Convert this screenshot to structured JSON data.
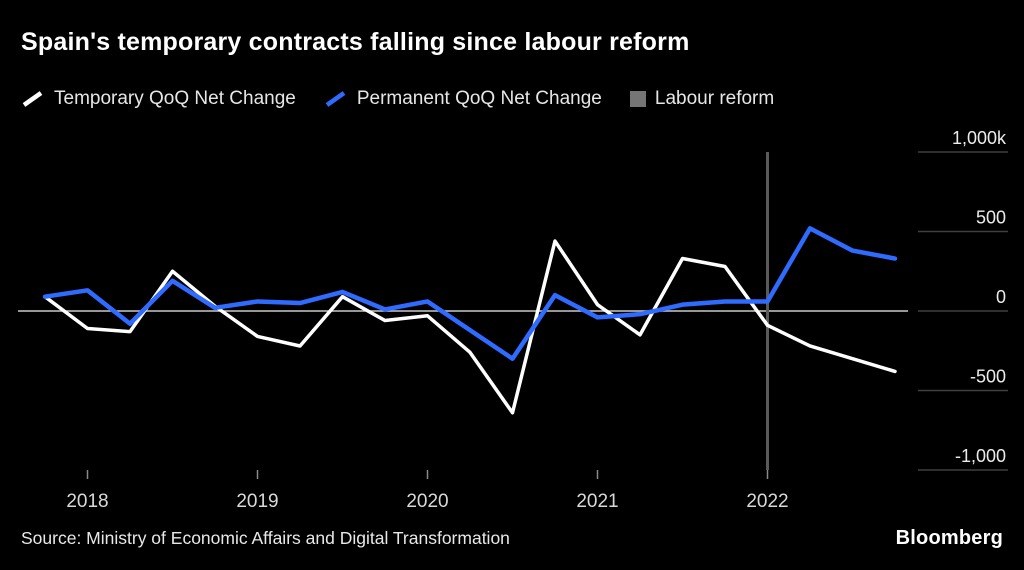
{
  "title": "Spain's temporary contracts falling since labour reform",
  "legend": [
    {
      "label": "Temporary QoQ Net Change",
      "color": "#ffffff",
      "type": "line",
      "icon": "temporary-line-icon"
    },
    {
      "label": "Permanent QoQ Net Change",
      "color": "#2f6bff",
      "type": "line",
      "icon": "permanent-line-icon"
    },
    {
      "label": "Labour reform",
      "color": "#757575",
      "type": "square",
      "icon": "labour-reform-swatch-icon"
    }
  ],
  "source": "Source: Ministry of Economic Affairs and Digital Transformation",
  "logo": "Bloomberg",
  "chart_data": {
    "type": "line",
    "x": [
      "2017 Q4",
      "2018 Q1",
      "2018 Q2",
      "2018 Q3",
      "2018 Q4",
      "2019 Q1",
      "2019 Q2",
      "2019 Q3",
      "2019 Q4",
      "2020 Q1",
      "2020 Q2",
      "2020 Q3",
      "2020 Q4",
      "2021 Q1",
      "2021 Q2",
      "2021 Q3",
      "2021 Q4",
      "2022 Q1",
      "2022 Q2",
      "2022 Q3",
      "2022 Q4"
    ],
    "series": [
      {
        "name": "Temporary QoQ Net Change",
        "color": "#ffffff",
        "values": [
          90,
          -110,
          -130,
          250,
          30,
          -160,
          -220,
          90,
          -60,
          -30,
          -260,
          -640,
          440,
          40,
          -150,
          330,
          280,
          -90,
          -220,
          -300,
          -380
        ]
      },
      {
        "name": "Permanent QoQ Net Change",
        "color": "#2f6bff",
        "values": [
          90,
          130,
          -80,
          190,
          20,
          60,
          50,
          120,
          10,
          60,
          -120,
          -300,
          100,
          -40,
          -20,
          40,
          60,
          60,
          520,
          380,
          330
        ]
      }
    ],
    "annotations": [
      {
        "type": "vline",
        "label": "Labour reform",
        "x": "2022 Q1",
        "color": "#5a5a5a"
      }
    ],
    "y_ticks": [
      {
        "value": 1000,
        "label": "1,000k"
      },
      {
        "value": 500,
        "label": "500"
      },
      {
        "value": 0,
        "label": "0"
      },
      {
        "value": -500,
        "label": "-500"
      },
      {
        "value": -1000,
        "label": "-1,000"
      }
    ],
    "x_ticks": [
      {
        "index": 1,
        "label": "2018"
      },
      {
        "index": 5,
        "label": "2019"
      },
      {
        "index": 9,
        "label": "2020"
      },
      {
        "index": 13,
        "label": "2021"
      },
      {
        "index": 17,
        "label": "2022"
      }
    ],
    "ylim": [
      -1000,
      1000
    ],
    "unit": "thousands of contracts",
    "grid": "right-side tick segments only, full-width zero line",
    "legend_position": "top"
  }
}
